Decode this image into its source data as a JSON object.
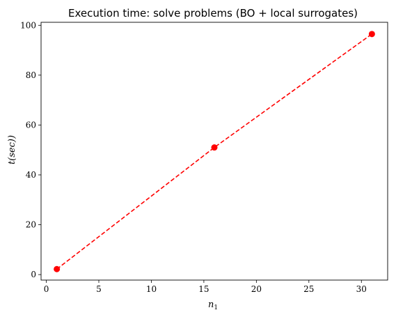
{
  "chart_data": {
    "type": "line",
    "title": "Execution time: solve problems (BO + local surrogates)",
    "xlabel_main": "n",
    "xlabel_sub": "1",
    "ylabel": "t(sec))",
    "xlim": [
      -0.5,
      32.5
    ],
    "ylim": [
      -2.2,
      101.2
    ],
    "xticks": [
      0,
      5,
      10,
      15,
      20,
      25,
      30
    ],
    "yticks": [
      0,
      20,
      40,
      60,
      80,
      100
    ],
    "grid": false,
    "series": [
      {
        "x": [
          1,
          16,
          31
        ],
        "y": [
          2.2,
          51.0,
          96.5
        ],
        "color": "#ff0000",
        "line_style": "dashed",
        "marker": "circle"
      }
    ]
  }
}
